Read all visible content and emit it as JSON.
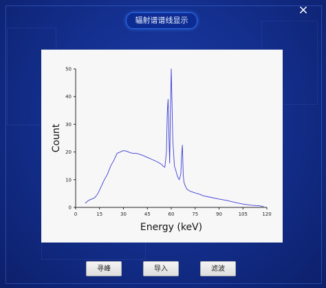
{
  "dialog": {
    "title": "辐射谱谱线显示",
    "close_label": "×"
  },
  "buttons": {
    "find_peak": "寻峰",
    "import": "导入",
    "filter": "滤波"
  },
  "colors": {
    "background": "#14308f",
    "line": "#3b3bd6"
  },
  "chart_data": {
    "type": "line",
    "xlabel": "Energy (keV)",
    "ylabel": "Count",
    "xlim": [
      0,
      120
    ],
    "ylim": [
      0,
      50
    ],
    "xticks": [
      0,
      15,
      30,
      45,
      60,
      75,
      90,
      105,
      120
    ],
    "yticks": [
      0,
      10,
      20,
      30,
      40,
      50
    ],
    "grid": false,
    "series": [
      {
        "x": [
          6,
          8,
          10,
          12,
          14,
          16,
          18,
          20,
          22,
          24,
          26,
          28,
          30,
          32,
          34,
          36,
          38,
          40,
          42,
          44,
          46,
          48,
          50,
          52,
          54,
          55,
          56,
          57,
          57.5,
          58,
          58.5,
          59,
          59.5,
          60,
          61,
          62,
          63,
          64,
          65,
          66,
          66.5,
          67,
          67.5,
          68,
          69,
          70,
          72,
          75,
          78,
          80,
          85,
          90,
          95,
          100,
          105,
          110,
          115,
          118
        ],
        "y": [
          1.5,
          2.5,
          3,
          3.5,
          5,
          7.5,
          10,
          12,
          15,
          17,
          19.5,
          20,
          20.5,
          20.3,
          19.8,
          19.5,
          19.5,
          19.2,
          18.8,
          18.3,
          17.8,
          17.3,
          16.8,
          16.2,
          15.5,
          14.8,
          14.5,
          20,
          34,
          39,
          27,
          16,
          35,
          50,
          24,
          15,
          13,
          11,
          10,
          12,
          19,
          22.5,
          12,
          9,
          7.5,
          6.5,
          5.8,
          5.2,
          4.7,
          4.2,
          3.6,
          3,
          2.5,
          1.8,
          1.2,
          0.8,
          0.6,
          0.3
        ]
      }
    ]
  }
}
